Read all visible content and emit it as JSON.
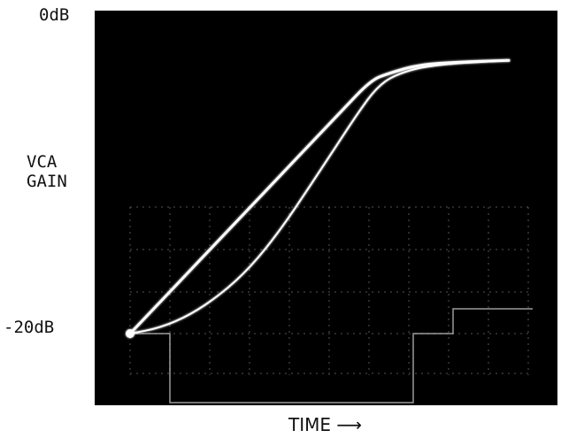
{
  "chart_data": {
    "type": "line",
    "style": "oscilloscope photograph",
    "background_color": "#000000",
    "trace_color": "#ffffff",
    "grid": "faint graticule on lower portion of screen",
    "ylabel": "VCA\nGAIN",
    "xlabel": "TIME ⟶",
    "y_tick_labels": [
      "0dB",
      "-20dB"
    ],
    "ylim": [
      -20,
      0
    ],
    "series": [
      {
        "values_db": [
          [
            0,
            -20.0
          ],
          [
            5,
            -17.8
          ],
          [
            10,
            -15.6
          ],
          [
            15,
            -13.4
          ],
          [
            20,
            -11.2
          ],
          [
            25,
            -9.0
          ],
          [
            30,
            -6.8
          ],
          [
            35,
            -4.6
          ],
          [
            40,
            -2.4
          ],
          [
            43,
            -1.9
          ],
          [
            48,
            -1.3
          ],
          [
            55,
            -1.1
          ],
          [
            63,
            -1.0
          ]
        ]
      },
      {
        "values_db": [
          [
            0,
            -20.0
          ],
          [
            5,
            -19.6
          ],
          [
            10,
            -18.7
          ],
          [
            15,
            -17.3
          ],
          [
            20,
            -15.4
          ],
          [
            25,
            -12.8
          ],
          [
            30,
            -9.7
          ],
          [
            35,
            -6.5
          ],
          [
            38,
            -4.6
          ],
          [
            41,
            -2.9
          ],
          [
            44,
            -2.0
          ],
          [
            50,
            -1.3
          ],
          [
            63,
            -1.0
          ]
        ]
      }
    ],
    "reference_waveform": {
      "description": "square gate pulse on lower graticule",
      "levels_db": [
        -20.0,
        -24.8
      ]
    }
  }
}
